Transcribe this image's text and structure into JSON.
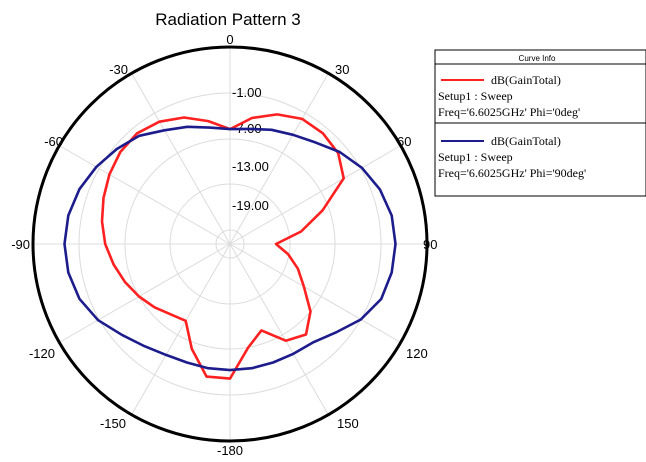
{
  "chart_data": {
    "type": "polar-line",
    "title": "Radiation Pattern 3",
    "angle_ticks": [
      "0",
      "30",
      "60",
      "90",
      "120",
      "150",
      "-180",
      "-150",
      "-120",
      "-90",
      "-60",
      "-30"
    ],
    "angle_tick_values": [
      0,
      30,
      60,
      90,
      120,
      150,
      180,
      -150,
      -120,
      -90,
      -60,
      -30
    ],
    "r_tick_labels": [
      "-1.00",
      "-7.00",
      "-13.00",
      "-19.00"
    ],
    "r_tick_values": [
      -1,
      -7,
      -13,
      -19
    ],
    "r_range": [
      -25,
      5
    ],
    "grid": true,
    "legend": {
      "title": "Curve Info",
      "placement": "top-right",
      "entries": [
        {
          "line1": "dB(GainTotal)",
          "line2": "Setup1 : Sweep",
          "line3": "Freq='6.6025GHz' Phi='0deg'"
        },
        {
          "line1": "dB(GainTotal)",
          "line2": "Setup1 : Sweep",
          "line3": "Freq='6.6025GHz' Phi='90deg'"
        }
      ]
    },
    "series": [
      {
        "color": "#ff2020",
        "theta": [
          0,
          -10,
          -20,
          -30,
          -40,
          -50,
          -60,
          -70,
          -80,
          -90,
          -100,
          -110,
          -120,
          -130,
          -140,
          -150,
          -160,
          -170,
          180,
          170,
          160,
          150,
          140,
          130,
          120,
          110,
          100,
          90,
          80,
          70,
          60,
          50,
          40,
          30,
          20,
          10
        ],
        "r": [
          -7.5,
          -6,
          -4.5,
          -3.5,
          -3,
          -3.2,
          -3.8,
          -4.5,
          -5.2,
          -6,
          -7,
          -8,
          -9,
          -10,
          -11,
          -11.5,
          -8,
          -4.5,
          -4.5,
          -9,
          -11,
          -8,
          -7,
          -9,
          -12,
          -14,
          -16,
          -18,
          -14,
          -10,
          -5,
          -3.5,
          -3,
          -3,
          -4,
          -5.5
        ]
      },
      {
        "color": "#1c1c8c",
        "theta": [
          0,
          -10,
          -20,
          -30,
          -40,
          -50,
          -60,
          -70,
          -80,
          -90,
          -100,
          -110,
          -120,
          -130,
          -140,
          -150,
          -160,
          -170,
          180,
          170,
          160,
          150,
          140,
          130,
          120,
          110,
          100,
          90,
          80,
          70,
          60,
          50,
          40,
          30,
          20,
          10
        ],
        "r": [
          -7.5,
          -7,
          -6,
          -5,
          -3.5,
          -2.5,
          -1.5,
          -0.6,
          0,
          0.2,
          0,
          -0.6,
          -1.8,
          -3.5,
          -4.7,
          -5.5,
          -5.8,
          -5.8,
          -5.8,
          -5.8,
          -5.8,
          -5.7,
          -5.4,
          -4,
          -2,
          -0.5,
          0,
          0.2,
          0,
          -0.7,
          -1.8,
          -3.2,
          -4.8,
          -5.8,
          -6.5,
          -7.2
        ]
      }
    ]
  }
}
